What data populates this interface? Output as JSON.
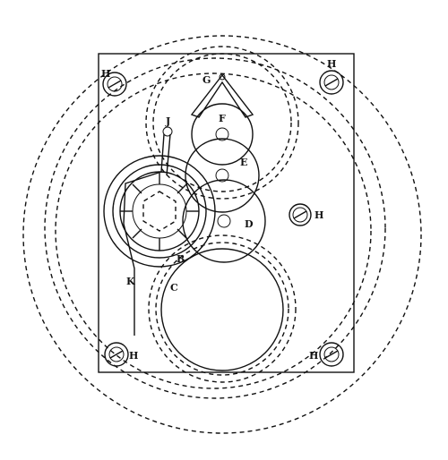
{
  "labels": {
    "b": "B",
    "c": "C",
    "d": "D",
    "e": "E",
    "f": "F",
    "g": "G",
    "j": "J",
    "k": "K",
    "h_top_left": "H",
    "h_top_right": "H",
    "h_mid_right": "H",
    "h_bottom_left": "H",
    "h_bottom_right": "H"
  }
}
